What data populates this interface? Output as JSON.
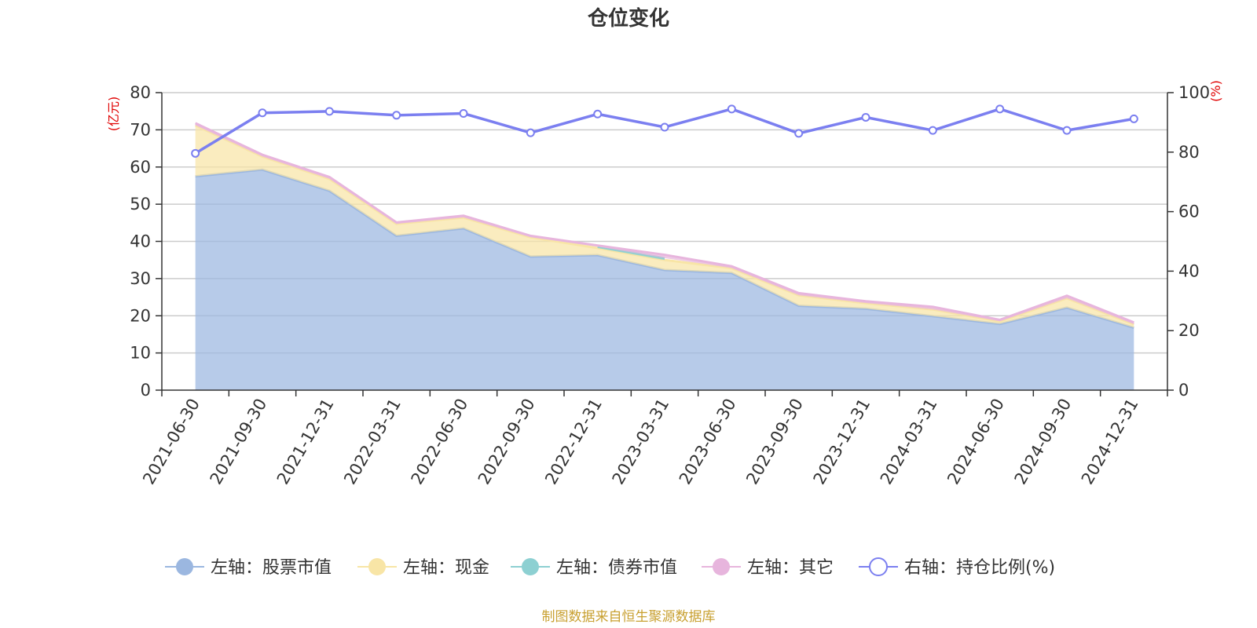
{
  "title": "仓位变化",
  "footer": "制图数据来自恒生聚源数据库",
  "chart_data": {
    "type": "area",
    "categories": [
      "2021-06-30",
      "2021-09-30",
      "2021-12-31",
      "2022-03-31",
      "2022-06-30",
      "2022-09-30",
      "2022-12-31",
      "2023-03-31",
      "2023-06-30",
      "2023-09-30",
      "2023-12-31",
      "2024-03-31",
      "2024-06-30",
      "2024-09-30",
      "2024-12-31"
    ],
    "left_axis": {
      "unit": "(亿元)",
      "ylim": [
        0,
        80
      ],
      "ticks": [
        0,
        10,
        20,
        30,
        40,
        50,
        60,
        70,
        80
      ]
    },
    "right_axis": {
      "unit": "(%)",
      "ylim": [
        0,
        100
      ],
      "ticks": [
        0,
        20,
        40,
        60,
        80,
        100
      ]
    },
    "stacked": true,
    "grid": true,
    "legend_position": "bottom",
    "series": [
      {
        "name": "左轴：股票市值",
        "axis": "left",
        "color": "#9bb7e0",
        "values": [
          57.5,
          59.3,
          53.6,
          41.5,
          43.5,
          35.9,
          36.3,
          32.3,
          31.5,
          22.7,
          21.9,
          19.9,
          17.8,
          22.2,
          16.8
        ]
      },
      {
        "name": "左轴：现金",
        "axis": "left",
        "color": "#f8e5a6",
        "values": [
          13.7,
          3.5,
          3.2,
          3.2,
          2.9,
          5.2,
          1.9,
          2.7,
          1.3,
          2.8,
          1.5,
          1.8,
          0.7,
          2.5,
          0.9
        ]
      },
      {
        "name": "左轴：债券市值",
        "axis": "left",
        "color": "#8dd0d2",
        "values": [
          0,
          0,
          0,
          0,
          0,
          0,
          0.4,
          0.5,
          0,
          0,
          0,
          0,
          0,
          0,
          0
        ]
      },
      {
        "name": "左轴：其它",
        "axis": "left",
        "color": "#e7b5dd",
        "values": [
          0.6,
          0.5,
          0.5,
          0.4,
          0.5,
          0.4,
          0.3,
          0.9,
          0.5,
          0.6,
          0.5,
          0.7,
          0.4,
          0.7,
          0.5
        ]
      },
      {
        "name": "右轴：持仓比例(%)",
        "axis": "right",
        "color": "#7b7ff0",
        "values": [
          79.6,
          93.2,
          93.7,
          92.4,
          93.0,
          86.5,
          92.8,
          88.4,
          94.5,
          86.3,
          91.7,
          87.3,
          94.5,
          87.3,
          91.2
        ]
      }
    ]
  }
}
